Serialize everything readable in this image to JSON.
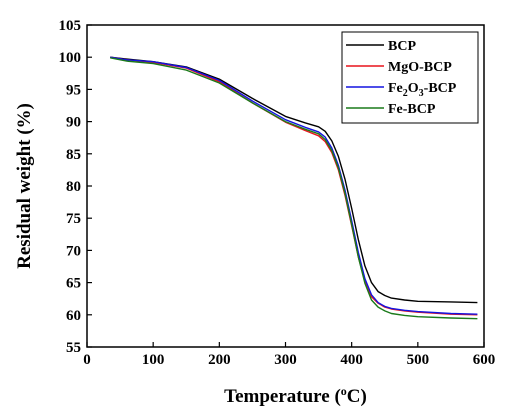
{
  "chart_data": {
    "type": "line",
    "title": "",
    "xlabel": "Temperature (°C)",
    "ylabel": "Residual weight (%)",
    "xlim": [
      0,
      600
    ],
    "ylim": [
      55,
      105
    ],
    "xticks": [
      0,
      100,
      200,
      300,
      400,
      500,
      600
    ],
    "yticks": [
      55,
      60,
      65,
      70,
      75,
      80,
      85,
      90,
      95,
      100,
      105
    ],
    "grid": false,
    "legend_position": "top-right",
    "series": [
      {
        "name": "BCP",
        "color": "#000000",
        "x": [
          35,
          60,
          100,
          150,
          200,
          250,
          300,
          330,
          350,
          360,
          370,
          380,
          390,
          400,
          410,
          420,
          430,
          440,
          450,
          460,
          480,
          500,
          550,
          590
        ],
        "y": [
          100.0,
          99.7,
          99.3,
          98.5,
          96.6,
          93.6,
          90.8,
          89.8,
          89.2,
          88.5,
          87.0,
          84.6,
          81.0,
          76.5,
          71.7,
          67.6,
          65.0,
          63.6,
          63.0,
          62.6,
          62.3,
          62.1,
          62.0,
          61.9
        ]
      },
      {
        "name": "MgO-BCP",
        "color": "#e8141c",
        "x": [
          35,
          60,
          100,
          150,
          200,
          250,
          300,
          330,
          350,
          360,
          370,
          380,
          390,
          400,
          410,
          420,
          430,
          440,
          450,
          460,
          480,
          500,
          550,
          590
        ],
        "y": [
          100.0,
          99.6,
          99.2,
          98.3,
          96.2,
          92.9,
          89.9,
          88.6,
          87.8,
          86.9,
          85.2,
          82.5,
          78.5,
          73.8,
          69.0,
          65.2,
          62.8,
          61.8,
          61.2,
          60.9,
          60.6,
          60.4,
          60.1,
          60.0
        ]
      },
      {
        "name": "Fe2O3-BCP",
        "color": "#1414e0",
        "x": [
          35,
          60,
          100,
          150,
          200,
          250,
          300,
          330,
          350,
          360,
          370,
          380,
          390,
          400,
          410,
          420,
          430,
          440,
          450,
          460,
          480,
          500,
          550,
          590
        ],
        "y": [
          100.0,
          99.6,
          99.3,
          98.4,
          96.4,
          93.2,
          90.3,
          89.1,
          88.4,
          87.6,
          85.9,
          83.2,
          79.3,
          74.6,
          69.7,
          65.6,
          63.1,
          61.9,
          61.3,
          61.0,
          60.7,
          60.5,
          60.2,
          60.1
        ]
      },
      {
        "name": "Fe-BCP",
        "color": "#1a7a1a",
        "x": [
          35,
          60,
          100,
          150,
          200,
          250,
          300,
          330,
          350,
          360,
          370,
          380,
          390,
          400,
          410,
          420,
          430,
          440,
          450,
          460,
          480,
          500,
          550,
          590
        ],
        "y": [
          99.9,
          99.4,
          99.0,
          98.0,
          96.0,
          92.9,
          90.0,
          88.8,
          88.1,
          87.2,
          85.5,
          82.8,
          78.8,
          74.0,
          69.0,
          64.9,
          62.3,
          61.2,
          60.6,
          60.2,
          59.9,
          59.7,
          59.5,
          59.4
        ]
      }
    ]
  }
}
